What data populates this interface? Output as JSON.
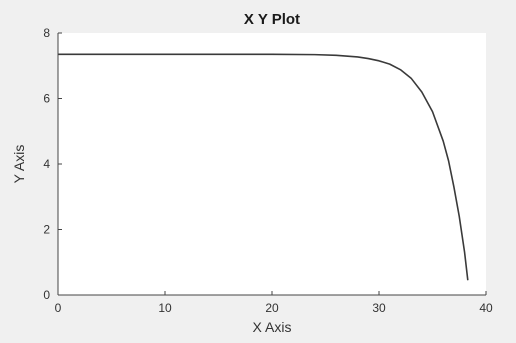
{
  "chart_data": {
    "type": "line",
    "title": "X Y Plot",
    "xlabel": "X Axis",
    "ylabel": "Y Axis",
    "xlim": [
      0,
      40
    ],
    "ylim": [
      0,
      8
    ],
    "xticks": [
      0,
      10,
      20,
      30,
      40
    ],
    "yticks": [
      0,
      2,
      4,
      6,
      8
    ],
    "grid": false,
    "series": [
      {
        "color": "#3a3a3a",
        "x": [
          0,
          5,
          10,
          15,
          20,
          24,
          26,
          28,
          29,
          30,
          31,
          32,
          33,
          34,
          35,
          36,
          36.5,
          37,
          37.5,
          38,
          38.3
        ],
        "y": [
          7.35,
          7.35,
          7.35,
          7.35,
          7.35,
          7.34,
          7.32,
          7.27,
          7.22,
          7.15,
          7.05,
          6.88,
          6.62,
          6.2,
          5.6,
          4.7,
          4.1,
          3.3,
          2.4,
          1.3,
          0.45
        ]
      }
    ]
  }
}
